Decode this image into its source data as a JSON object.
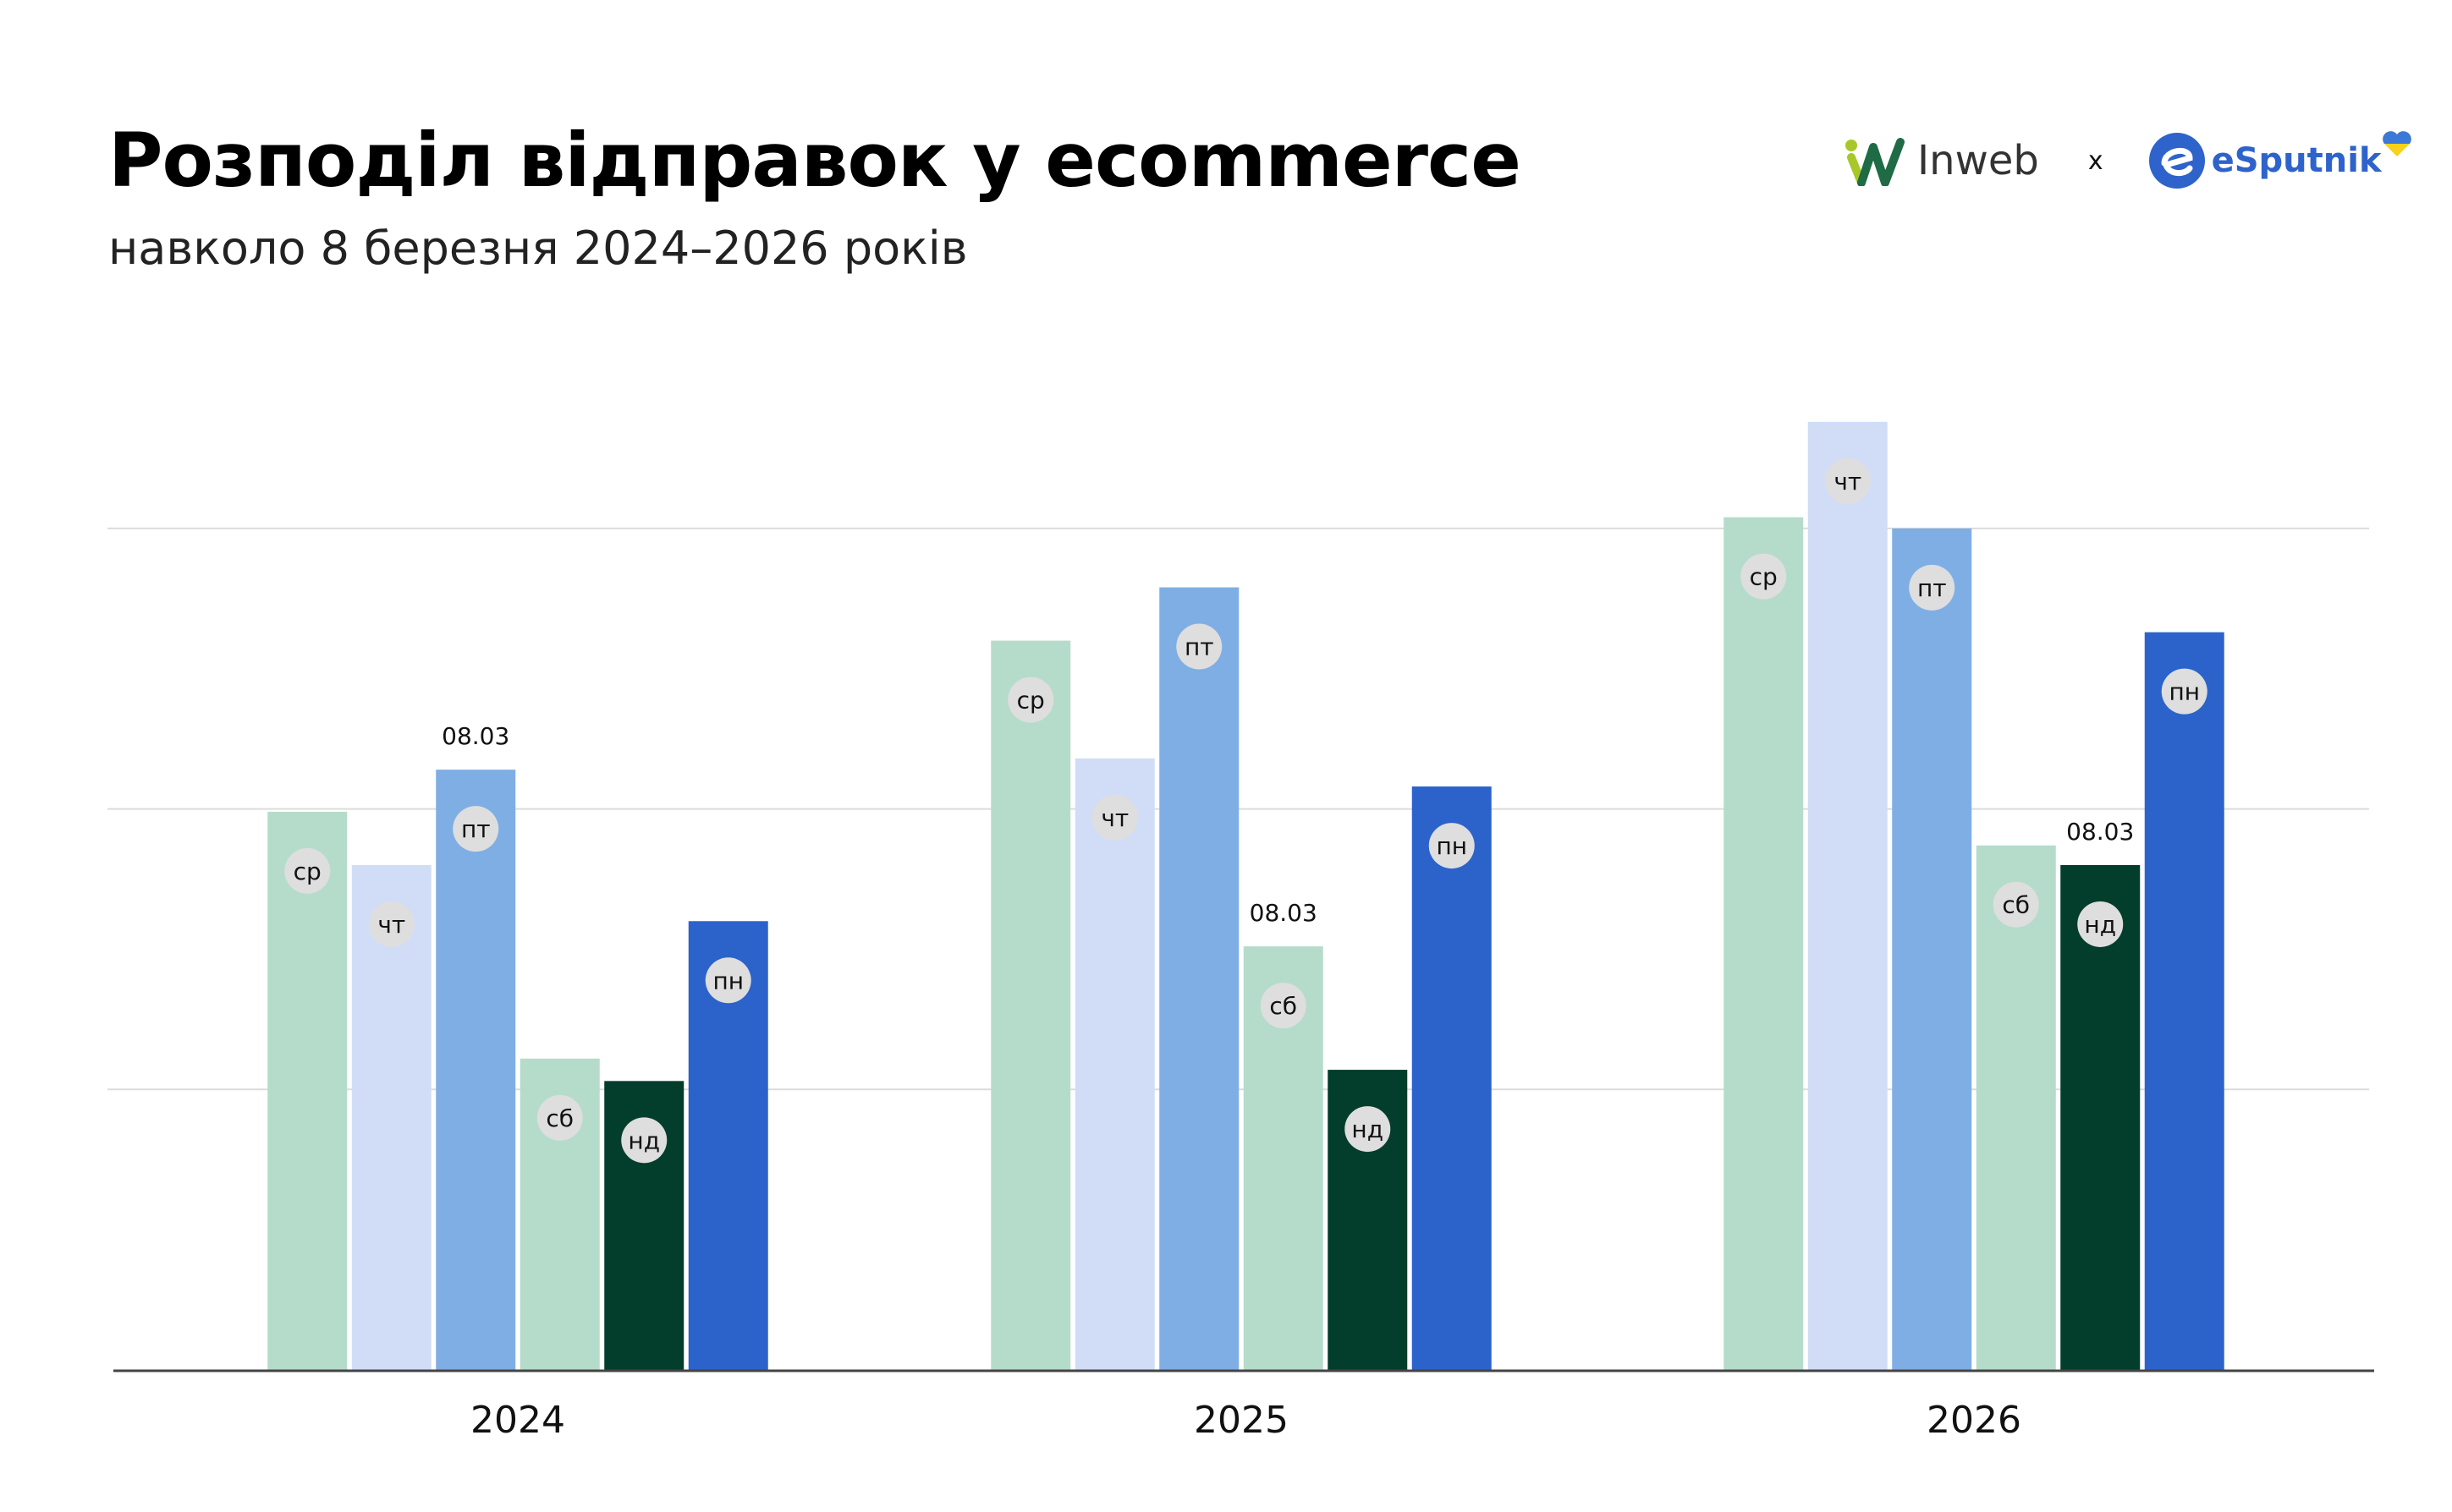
{
  "title": "Розподіл відправок у ecommerce",
  "subtitle": "навколо 8 березня 2024–2026 років",
  "logos": {
    "inweb": "Inweb",
    "separator": "x",
    "esputnik": "eSputnik"
  },
  "colors": {
    "ср": "#b5dcca",
    "чт": "#d1ddf7",
    "пт": "#7faee5",
    "сб": "#b5dcca",
    "нд": "#033d2b",
    "пн": "#2b63cb"
  },
  "chart_data": {
    "type": "bar",
    "title": "",
    "xlabel": "",
    "ylabel": "",
    "y_unit_note_absent": true,
    "ylim": [
      0,
      3.5
    ],
    "grid": true,
    "gridlines": [
      1,
      2,
      3
    ],
    "categories": [
      "2024",
      "2025",
      "2026"
    ],
    "series_labels": [
      "ср",
      "чт",
      "пт",
      "сб",
      "нд",
      "пн"
    ],
    "groups": [
      {
        "year": "2024",
        "values": [
          1.99,
          1.8,
          2.14,
          1.11,
          1.03,
          1.6
        ],
        "annotation": {
          "label": "08.03",
          "index": 2
        }
      },
      {
        "year": "2025",
        "values": [
          2.6,
          2.18,
          2.79,
          1.51,
          1.07,
          2.08
        ],
        "annotation": {
          "label": "08.03",
          "index": 3
        }
      },
      {
        "year": "2026",
        "values": [
          3.04,
          3.38,
          3.0,
          1.87,
          1.8,
          2.63
        ],
        "annotation": {
          "label": "08.03",
          "index": 4
        }
      }
    ]
  }
}
